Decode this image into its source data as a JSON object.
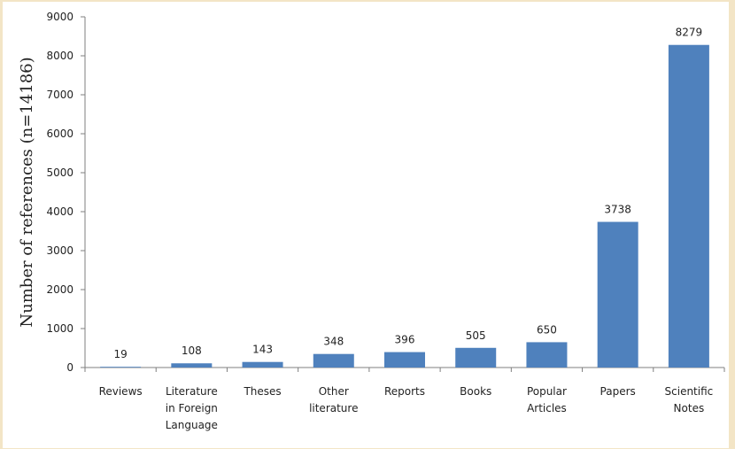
{
  "chart_data": {
    "type": "bar",
    "title": "",
    "xlabel": "",
    "ylabel": "Number of references (n=14186)",
    "ylim": [
      0,
      9000
    ],
    "yticks": [
      0,
      1000,
      2000,
      3000,
      4000,
      5000,
      6000,
      7000,
      8000,
      9000
    ],
    "grid": false,
    "legend": "none",
    "bar_color": "#4f81bd",
    "categories": [
      [
        "Reviews"
      ],
      [
        "Literature",
        "in Foreign",
        "Language"
      ],
      [
        "Theses"
      ],
      [
        "Other",
        "literature"
      ],
      [
        "Reports"
      ],
      [
        "Books"
      ],
      [
        "Popular",
        "Articles"
      ],
      [
        "Papers"
      ],
      [
        "Scientific",
        "Notes"
      ]
    ],
    "values": [
      19,
      108,
      143,
      348,
      396,
      505,
      650,
      3738,
      8279
    ],
    "data_labels": [
      "19",
      "108",
      "143",
      "348",
      "396",
      "505",
      "650",
      "3738",
      "8279"
    ]
  }
}
